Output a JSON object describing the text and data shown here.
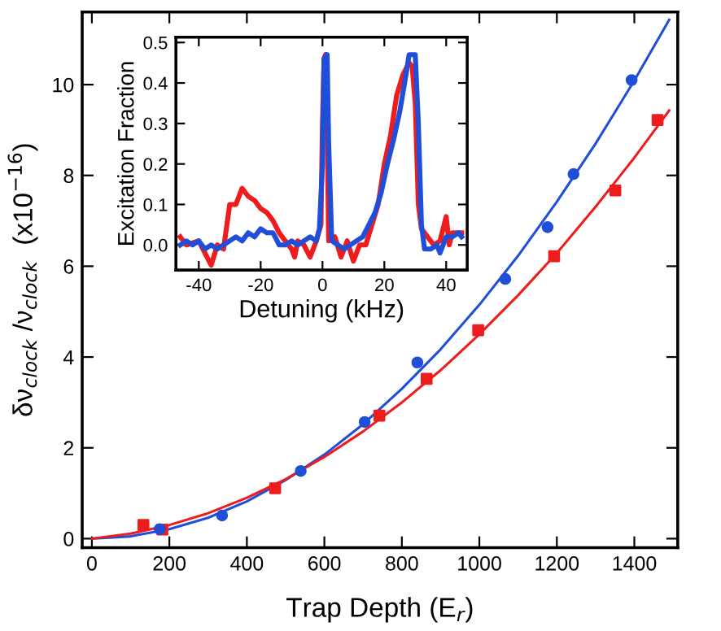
{
  "chart_data": [
    {
      "type": "scatter",
      "xlabel": "Trap Depth (E$_{r}$)",
      "ylabel": "δν$_{clock}$ /ν$_{clock}$  (x10$^{−16}$)",
      "xlim": [
        -25,
        1512
      ],
      "ylim": [
        -0.2,
        11.6
      ],
      "xticks": [
        0,
        200,
        400,
        600,
        800,
        1000,
        1200,
        1400
      ],
      "yticks": [
        0,
        2,
        4,
        6,
        8,
        10
      ],
      "grid": false,
      "series": [
        {
          "type": "line",
          "color": "#1f4fd8",
          "marker": "none",
          "x": [
            0,
            100,
            200,
            300,
            400,
            500,
            600,
            700,
            800,
            900,
            1000,
            1100,
            1200,
            1300,
            1400,
            1490
          ],
          "values": [
            0,
            0.05,
            0.21,
            0.46,
            0.82,
            1.29,
            1.85,
            2.52,
            3.3,
            4.17,
            5.15,
            6.23,
            7.42,
            8.7,
            10.09,
            11.43
          ]
        },
        {
          "type": "line",
          "color": "#ee1c1c",
          "marker": "none",
          "x": [
            0,
            100,
            200,
            300,
            400,
            500,
            600,
            700,
            800,
            900,
            1000,
            1100,
            1200,
            1300,
            1400,
            1490
          ],
          "values": [
            0,
            0.11,
            0.3,
            0.56,
            0.9,
            1.31,
            1.8,
            2.36,
            3.0,
            3.71,
            4.5,
            5.36,
            6.29,
            7.31,
            8.39,
            9.43
          ]
        },
        {
          "type": "scatter",
          "color": "#1f4fd8",
          "marker": "circle",
          "x": [
            175,
            336,
            539,
            704,
            840,
            1067,
            1176,
            1243,
            1393
          ],
          "values": [
            0.21,
            0.51,
            1.49,
            2.57,
            3.88,
            5.72,
            6.86,
            8.03,
            10.1
          ]
        },
        {
          "type": "scatter",
          "color": "#ee1c1c",
          "marker": "square",
          "x": [
            133,
            182,
            473,
            742,
            864,
            997,
            1193,
            1351,
            1460
          ],
          "values": [
            0.3,
            0.2,
            1.11,
            2.71,
            3.52,
            4.59,
            6.22,
            7.67,
            9.22
          ]
        }
      ]
    },
    {
      "type": "line",
      "xlabel": "Detuning (kHz)",
      "ylabel": "Excitation Fraction",
      "xlim": [
        -47.4,
        46.8
      ],
      "ylim": [
        -0.062,
        0.513
      ],
      "xticks": [
        -40,
        -20,
        0,
        20,
        40
      ],
      "yticks": [
        {
          "value": 0,
          "label": "0.0"
        },
        0.1,
        0.2,
        0.3,
        0.4,
        0.5
      ],
      "grid": false,
      "marker": "none",
      "line_style": "solid",
      "series": [
        {
          "color": "#ee1c1c",
          "x": [
            -46,
            -44,
            -40,
            -36,
            -34,
            -32,
            -30,
            -28,
            -26,
            -24,
            -22,
            -20,
            -18,
            -16,
            -14,
            -12,
            -10,
            -9,
            -8,
            -6,
            -4,
            -2,
            -0.5,
            0,
            0.5,
            1,
            1.5,
            2,
            4,
            6,
            8,
            10,
            12,
            14,
            16,
            18,
            20,
            22,
            24,
            26,
            28,
            29,
            30,
            31,
            32,
            34,
            36,
            38,
            40,
            41,
            42,
            44,
            45
          ],
          "values": [
            0.02,
            0.0,
            0.01,
            -0.05,
            0.0,
            -0.01,
            0.1,
            0.1,
            0.14,
            0.12,
            0.11,
            0.09,
            0.08,
            0.06,
            0.03,
            0.01,
            -0.01,
            -0.03,
            0.01,
            0.0,
            -0.03,
            0.01,
            0.05,
            0.3,
            0.46,
            0.47,
            0.3,
            0.01,
            0.02,
            -0.03,
            0.01,
            -0.04,
            0.0,
            0.0,
            0.05,
            0.1,
            0.2,
            0.27,
            0.37,
            0.42,
            0.45,
            0.44,
            0.35,
            0.1,
            0.04,
            0.02,
            0.0,
            0.01,
            0.07,
            0.0,
            0.03,
            0.03,
            0.03
          ]
        },
        {
          "color": "#1f4fd8",
          "x": [
            -46,
            -44,
            -42,
            -40,
            -38,
            -36,
            -34,
            -32,
            -30,
            -28,
            -26,
            -24,
            -22,
            -20,
            -18,
            -16,
            -14,
            -12,
            -10,
            -8,
            -6,
            -4,
            -2,
            -1,
            0,
            0.5,
            1.5,
            2,
            3,
            5,
            7,
            9,
            11,
            13,
            15,
            17,
            19,
            21,
            23,
            25,
            27,
            28,
            30,
            31,
            32,
            33,
            35,
            37,
            38,
            40,
            42,
            44,
            45
          ],
          "values": [
            0.0,
            0.01,
            0.0,
            0.01,
            -0.01,
            0.0,
            -0.01,
            0.0,
            0.01,
            0.02,
            0.01,
            0.03,
            0.02,
            0.04,
            0.03,
            0.03,
            0.0,
            0.0,
            0.01,
            0.0,
            0.01,
            0.02,
            0.01,
            0.04,
            0.2,
            0.46,
            0.47,
            0.25,
            0.01,
            0.0,
            -0.01,
            0.0,
            0.01,
            0.02,
            0.05,
            0.08,
            0.13,
            0.2,
            0.26,
            0.33,
            0.42,
            0.47,
            0.47,
            0.3,
            0.05,
            -0.01,
            -0.01,
            0.0,
            -0.02,
            0.02,
            0.02,
            0.03,
            0.02
          ]
        }
      ]
    }
  ]
}
